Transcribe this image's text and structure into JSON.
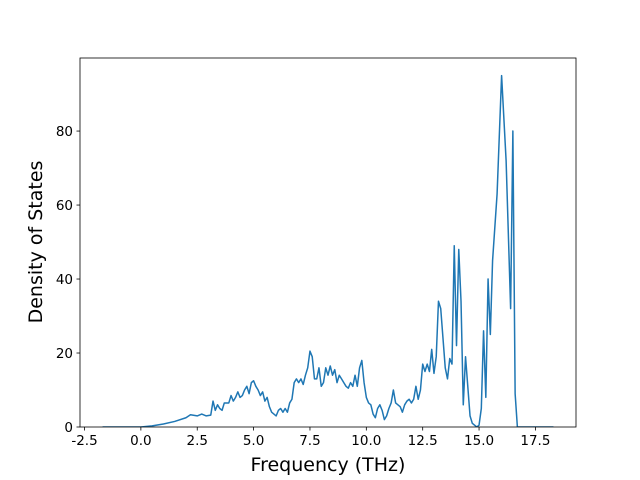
{
  "chart_data": {
    "type": "line",
    "x_label": "Frequency (THz)",
    "y_label": "Density of States",
    "color": "#1f77b4",
    "x": [
      -1.7,
      0,
      0.5,
      1.0,
      1.5,
      2.0,
      2.2,
      2.5,
      2.7,
      2.9,
      3.1,
      3.2,
      3.3,
      3.4,
      3.5,
      3.6,
      3.7,
      3.9,
      4.0,
      4.1,
      4.2,
      4.3,
      4.4,
      4.5,
      4.6,
      4.7,
      4.8,
      4.9,
      5.0,
      5.1,
      5.2,
      5.3,
      5.4,
      5.5,
      5.6,
      5.7,
      5.8,
      5.9,
      6.0,
      6.1,
      6.2,
      6.3,
      6.4,
      6.5,
      6.6,
      6.7,
      6.8,
      6.9,
      7.0,
      7.1,
      7.2,
      7.3,
      7.4,
      7.5,
      7.6,
      7.7,
      7.8,
      7.9,
      8.0,
      8.1,
      8.2,
      8.3,
      8.4,
      8.5,
      8.6,
      8.7,
      8.8,
      8.9,
      9.0,
      9.1,
      9.2,
      9.3,
      9.4,
      9.5,
      9.6,
      9.7,
      9.8,
      9.9,
      10.0,
      10.1,
      10.2,
      10.3,
      10.4,
      10.5,
      10.6,
      10.7,
      10.8,
      10.9,
      11.0,
      11.1,
      11.2,
      11.3,
      11.4,
      11.5,
      11.6,
      11.7,
      11.8,
      11.9,
      12.0,
      12.1,
      12.2,
      12.3,
      12.4,
      12.5,
      12.6,
      12.7,
      12.8,
      12.9,
      13.0,
      13.1,
      13.2,
      13.3,
      13.4,
      13.5,
      13.6,
      13.7,
      13.8,
      13.9,
      14.0,
      14.1,
      14.2,
      14.3,
      14.4,
      14.5,
      14.6,
      14.7,
      14.9,
      15.0,
      15.1,
      15.2,
      15.3,
      15.4,
      15.5,
      15.6,
      15.8,
      16.0,
      16.2,
      16.4,
      16.5,
      16.6,
      16.7,
      18.3
    ],
    "values": [
      0,
      0,
      0.3,
      0.8,
      1.5,
      2.5,
      3.3,
      3.0,
      3.5,
      3.0,
      3.2,
      7,
      4.5,
      6,
      5,
      4.5,
      6.5,
      6.5,
      8.5,
      7,
      8,
      9.5,
      8,
      8.5,
      10,
      11,
      9,
      12,
      12.5,
      11,
      10,
      8.5,
      9.5,
      7,
      8,
      5.5,
      4,
      3.5,
      3,
      4.5,
      5,
      4,
      5,
      4,
      6.5,
      7.5,
      12,
      13,
      12,
      13,
      11.5,
      14,
      16,
      20.5,
      19,
      13,
      13,
      16,
      11,
      12,
      16,
      14,
      16.5,
      14,
      15.5,
      12,
      14,
      13,
      12,
      11,
      10.5,
      12,
      11,
      14,
      11,
      16,
      18,
      12,
      8,
      6.5,
      6,
      3.5,
      2.5,
      5,
      6,
      4.5,
      2,
      3,
      5,
      6.5,
      10,
      6.5,
      6,
      5.5,
      4,
      6,
      7,
      7.5,
      6.5,
      7.5,
      11,
      7.5,
      10,
      17,
      15,
      17,
      15,
      21,
      14.5,
      19,
      34,
      32,
      24,
      16,
      13,
      18.5,
      17,
      49,
      22,
      48,
      34,
      6,
      19,
      11,
      3,
      1,
      0,
      0.5,
      5,
      26,
      8,
      40,
      25,
      45,
      63,
      95,
      72,
      32,
      80,
      9,
      0,
      0
    ],
    "xlim": [
      -2.7,
      19.3
    ],
    "ylim": [
      0,
      99.75
    ],
    "xticks": [
      {
        "value": -2.5,
        "label": "-2.5"
      },
      {
        "value": 0,
        "label": "0.0"
      },
      {
        "value": 2.5,
        "label": "2.5"
      },
      {
        "value": 5,
        "label": "5.0"
      },
      {
        "value": 7.5,
        "label": "7.5"
      },
      {
        "value": 10,
        "label": "10.0"
      },
      {
        "value": 12.5,
        "label": "12.5"
      },
      {
        "value": 15,
        "label": "15.0"
      },
      {
        "value": 17.5,
        "label": "17.5"
      }
    ],
    "yticks": [
      0,
      20,
      40,
      60,
      80
    ]
  }
}
